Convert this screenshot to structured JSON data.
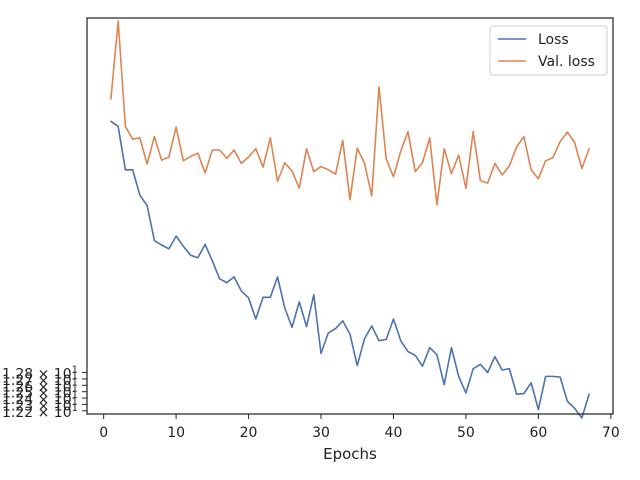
{
  "chart_data": {
    "type": "line",
    "title": "",
    "xlabel": "Epochs",
    "ylabel": "",
    "xlim": [
      -2.3,
      70.3
    ],
    "ylim": [
      12.215,
      12.836
    ],
    "xticks": [
      0,
      10,
      20,
      30,
      40,
      50,
      60,
      70
    ],
    "xtick_labels": [
      "0",
      "10",
      "20",
      "30",
      "40",
      "50",
      "60",
      "70"
    ],
    "yticks": [
      12.22,
      12.23,
      12.24,
      12.25,
      12.26,
      12.27,
      12.28
    ],
    "ytick_labels": [
      [
        "1.22",
        "× 10",
        "1"
      ],
      [
        "1.23",
        "× 10",
        "1"
      ],
      [
        "1.24",
        "× 10",
        "1"
      ],
      [
        "1.25",
        "× 10",
        "1"
      ],
      [
        "1.26",
        "× 10",
        "1"
      ],
      [
        "1.27",
        "× 10",
        "1"
      ],
      [
        "1.28",
        "× 10",
        "1"
      ]
    ],
    "grid": false,
    "legend_position": "top-right",
    "x": [
      1,
      2,
      3,
      4,
      5,
      6,
      7,
      8,
      9,
      10,
      11,
      12,
      13,
      14,
      15,
      16,
      17,
      18,
      19,
      20,
      21,
      22,
      23,
      24,
      25,
      26,
      27,
      28,
      29,
      30,
      31,
      32,
      33,
      34,
      35,
      36,
      37,
      38,
      39,
      40,
      41,
      42,
      43,
      44,
      45,
      46,
      47,
      48,
      49,
      50,
      51,
      52,
      53,
      54,
      55,
      56,
      57,
      58,
      59,
      60,
      61,
      62,
      63,
      64,
      65,
      66,
      67
    ],
    "series": [
      {
        "name": "Loss",
        "color": "#4c72b0",
        "values": [
          12.674,
          12.666,
          12.598,
          12.598,
          12.558,
          12.542,
          12.487,
          12.48,
          12.474,
          12.494,
          12.478,
          12.464,
          12.46,
          12.481,
          12.455,
          12.427,
          12.421,
          12.43,
          12.408,
          12.397,
          12.364,
          12.398,
          12.398,
          12.43,
          12.381,
          12.351,
          12.391,
          12.352,
          12.402,
          12.31,
          12.342,
          12.349,
          12.361,
          12.34,
          12.291,
          12.333,
          12.353,
          12.33,
          12.332,
          12.364,
          12.33,
          12.313,
          12.307,
          12.29,
          12.319,
          12.308,
          12.261,
          12.319,
          12.274,
          12.248,
          12.286,
          12.293,
          12.28,
          12.305,
          12.284,
          12.286,
          12.246,
          12.247,
          12.264,
          12.222,
          12.274,
          12.274,
          12.273,
          12.235,
          12.224,
          12.209,
          12.246
        ]
      },
      {
        "name": "Val. loss",
        "color": "#dd8452",
        "values": [
          12.709,
          12.831,
          12.666,
          12.646,
          12.648,
          12.607,
          12.65,
          12.613,
          12.618,
          12.665,
          12.612,
          12.619,
          12.624,
          12.593,
          12.629,
          12.629,
          12.616,
          12.629,
          12.608,
          12.618,
          12.631,
          12.602,
          12.648,
          12.58,
          12.609,
          12.596,
          12.569,
          12.631,
          12.595,
          12.603,
          12.598,
          12.591,
          12.644,
          12.551,
          12.632,
          12.608,
          12.557,
          12.728,
          12.615,
          12.587,
          12.627,
          12.658,
          12.595,
          12.609,
          12.648,
          12.543,
          12.631,
          12.592,
          12.621,
          12.569,
          12.658,
          12.581,
          12.577,
          12.608,
          12.59,
          12.604,
          12.634,
          12.65,
          12.598,
          12.584,
          12.612,
          12.617,
          12.642,
          12.657,
          12.641,
          12.6,
          12.631
        ]
      }
    ]
  }
}
